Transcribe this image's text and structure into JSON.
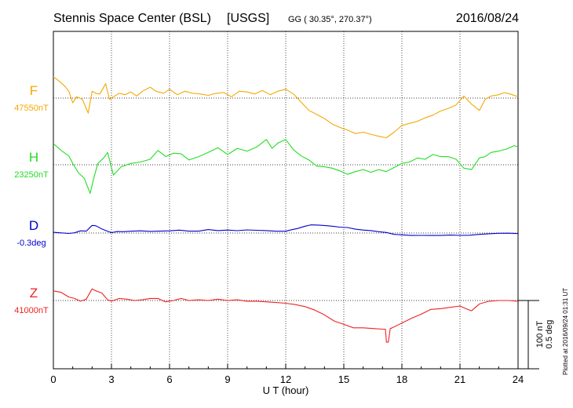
{
  "header": {
    "station": "Stennis Space Center (BSL)",
    "agency": "[USGS]",
    "coords": "GG ( 30.35°, 270.37°)",
    "date": "2016/08/24"
  },
  "footer": {
    "plotted": "Plotted at 2016/09/24 01:31 UT"
  },
  "scale": {
    "nt": "100 nT",
    "deg": "0.5 deg",
    "nt_value": 100
  },
  "chart_data": {
    "type": "line",
    "xlabel": "U T (hour)",
    "xlim": [
      0,
      24
    ],
    "xticks": [
      "0",
      "3",
      "6",
      "9",
      "12",
      "15",
      "18",
      "21",
      "24"
    ],
    "series": [
      {
        "name": "F",
        "baseline_label": "47550nT",
        "color": "#f5a800",
        "baseline": 47550,
        "x": [
          0,
          0.3,
          0.6,
          0.8,
          1.0,
          1.2,
          1.5,
          1.8,
          2.0,
          2.2,
          2.4,
          2.7,
          2.9,
          3.1,
          3.4,
          3.7,
          4.0,
          4.3,
          4.6,
          5.0,
          5.3,
          5.7,
          6.0,
          6.4,
          6.8,
          7.2,
          7.6,
          8.0,
          8.4,
          8.8,
          9.2,
          9.6,
          10.0,
          10.4,
          10.8,
          11.2,
          11.6,
          12.0,
          12.4,
          12.8,
          13.2,
          13.6,
          14.0,
          14.4,
          14.8,
          15.2,
          15.6,
          16.0,
          16.4,
          16.8,
          17.2,
          17.6,
          18.0,
          18.4,
          18.8,
          19.2,
          19.6,
          20.0,
          20.4,
          20.8,
          21.2,
          21.6,
          22.0,
          22.3,
          22.6,
          23.0,
          23.3,
          23.6,
          24.0
        ],
        "y": [
          47581,
          47575,
          47567,
          47560,
          47543,
          47552,
          47548,
          47528,
          47560,
          47557,
          47556,
          47571,
          47548,
          47552,
          47557,
          47555,
          47559,
          47553,
          47560,
          47566,
          47560,
          47557,
          47563,
          47555,
          47560,
          47557,
          47556,
          47554,
          47557,
          47558,
          47552,
          47560,
          47559,
          47556,
          47561,
          47555,
          47560,
          47563,
          47556,
          47544,
          47532,
          47526,
          47520,
          47512,
          47507,
          47503,
          47498,
          47500,
          47497,
          47494,
          47492,
          47500,
          47510,
          47513,
          47516,
          47521,
          47525,
          47531,
          47535,
          47540,
          47553,
          47541,
          47532,
          47548,
          47553,
          47555,
          47558,
          47556,
          47552
        ]
      },
      {
        "name": "H",
        "baseline_label": "23250nT",
        "color": "#22dd22",
        "baseline": 23250,
        "x": [
          0,
          0.4,
          0.8,
          1.0,
          1.3,
          1.6,
          1.9,
          2.1,
          2.3,
          2.6,
          2.8,
          3.1,
          3.5,
          4.0,
          4.5,
          5.0,
          5.4,
          5.8,
          6.2,
          6.6,
          7.0,
          7.5,
          8.0,
          8.5,
          9.0,
          9.5,
          10.0,
          10.5,
          11.0,
          11.3,
          11.6,
          12.0,
          12.4,
          12.8,
          13.2,
          13.6,
          14.0,
          14.4,
          14.8,
          15.2,
          15.6,
          16.0,
          16.4,
          16.8,
          17.2,
          17.6,
          18.0,
          18.4,
          18.8,
          19.2,
          19.6,
          20.0,
          20.4,
          20.8,
          21.2,
          21.6,
          22.0,
          22.3,
          22.6,
          23.0,
          23.4,
          23.8,
          24.0
        ],
        "y": [
          23281,
          23271,
          23263,
          23252,
          23238,
          23230,
          23208,
          23232,
          23252,
          23260,
          23268,
          23235,
          23247,
          23252,
          23254,
          23258,
          23271,
          23262,
          23267,
          23266,
          23257,
          23262,
          23268,
          23275,
          23265,
          23274,
          23270,
          23276,
          23287,
          23274,
          23282,
          23287,
          23272,
          23263,
          23257,
          23248,
          23247,
          23245,
          23241,
          23236,
          23240,
          23243,
          23239,
          23243,
          23240,
          23246,
          23252,
          23254,
          23260,
          23258,
          23265,
          23262,
          23262,
          23258,
          23245,
          23243,
          23260,
          23262,
          23268,
          23270,
          23273,
          23278,
          23276
        ]
      },
      {
        "name": "D",
        "baseline_label": "-0.3deg",
        "color": "#0000cc",
        "baseline": -0.3,
        "x": [
          0,
          0.4,
          0.8,
          1.1,
          1.4,
          1.7,
          2.0,
          2.2,
          2.5,
          2.8,
          3.0,
          3.3,
          3.6,
          4.0,
          4.5,
          5.0,
          5.5,
          6.0,
          6.5,
          7.0,
          7.5,
          8.0,
          8.5,
          9.0,
          9.5,
          10.0,
          10.5,
          11.0,
          11.5,
          12.0,
          12.3,
          12.6,
          13.0,
          13.3,
          13.7,
          14.0,
          14.4,
          14.8,
          15.2,
          15.6,
          16.0,
          16.4,
          16.8,
          17.2,
          17.6,
          18.0,
          18.5,
          19.0,
          19.5,
          20.0,
          20.5,
          21.0,
          21.5,
          22.0,
          22.5,
          23.0,
          23.5,
          24.0
        ],
        "y": [
          -0.295,
          -0.299,
          -0.303,
          -0.298,
          -0.284,
          -0.286,
          -0.244,
          -0.247,
          -0.27,
          -0.287,
          -0.297,
          -0.289,
          -0.29,
          -0.287,
          -0.284,
          -0.288,
          -0.286,
          -0.284,
          -0.279,
          -0.286,
          -0.286,
          -0.275,
          -0.282,
          -0.278,
          -0.283,
          -0.277,
          -0.28,
          -0.282,
          -0.287,
          -0.287,
          -0.276,
          -0.267,
          -0.25,
          -0.24,
          -0.242,
          -0.245,
          -0.25,
          -0.257,
          -0.26,
          -0.272,
          -0.278,
          -0.282,
          -0.29,
          -0.296,
          -0.31,
          -0.313,
          -0.318,
          -0.317,
          -0.318,
          -0.318,
          -0.315,
          -0.317,
          -0.316,
          -0.31,
          -0.305,
          -0.302,
          -0.301,
          -0.304
        ]
      },
      {
        "name": "Z",
        "baseline_label": "41000nT",
        "color": "#ee2222",
        "baseline": 41000,
        "x": [
          0,
          0.4,
          0.8,
          1.1,
          1.4,
          1.7,
          2.0,
          2.2,
          2.5,
          2.8,
          3.0,
          3.4,
          3.8,
          4.2,
          4.6,
          5.0,
          5.4,
          5.8,
          6.2,
          6.6,
          7.0,
          7.5,
          8.0,
          8.5,
          9.0,
          9.5,
          10.0,
          10.5,
          11.0,
          11.5,
          12.0,
          12.5,
          13.0,
          13.5,
          14.0,
          14.5,
          15.0,
          15.5,
          16.0,
          16.5,
          17.0,
          17.15,
          17.2,
          17.3,
          17.4,
          17.5,
          18.0,
          18.5,
          19.0,
          19.5,
          20.0,
          20.5,
          21.0,
          21.3,
          21.6,
          22.0,
          22.5,
          23.0,
          23.5,
          24.0
        ],
        "y": [
          41014,
          41012,
          41005,
          41003,
          40999,
          41002,
          41017,
          41014,
          41011,
          41001,
          40999,
          41003,
          41002,
          41000,
          41001,
          41003,
          41003,
          40998,
          41000,
          41003,
          41000,
          41001,
          41000,
          41002,
          41000,
          41001,
          40999,
          40999,
          40998,
          40997,
          40996,
          40994,
          40991,
          40986,
          40979,
          40970,
          40965,
          40960,
          40960,
          40959,
          40958,
          40958,
          40939,
          40939,
          40959,
          40960,
          40967,
          40974,
          40980,
          40987,
          40988,
          40990,
          40992,
          40988,
          40985,
          40995,
          40999,
          41000,
          41000,
          40999
        ]
      }
    ]
  }
}
